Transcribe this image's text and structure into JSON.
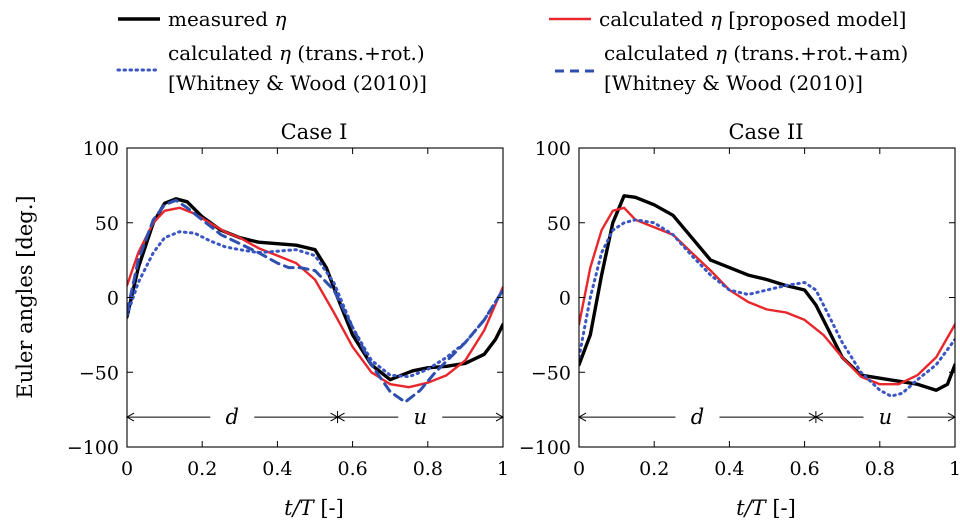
{
  "legend": [
    {
      "key": "measured",
      "prefix": "measured ",
      "sym": "η",
      "suffix": "",
      "line2": "",
      "color": "#000000",
      "style": "solid"
    },
    {
      "key": "proposed",
      "prefix": "calculated ",
      "sym": "η",
      "suffix": " [proposed model]",
      "line2": "",
      "color": "#e8262b",
      "style": "solid"
    },
    {
      "key": "trans_rot",
      "prefix": "calculated ",
      "sym": "η",
      "suffix": " (trans.+rot.)",
      "line2": "[Whitney & Wood (2010)]",
      "color": "#3a55c4",
      "style": "dotted"
    },
    {
      "key": "trans_rot_am",
      "prefix": "calculated ",
      "sym": "η",
      "suffix": " (trans.+rot.+am)",
      "line2": "[Whitney & Wood (2010)]",
      "color": "#2f4fb0",
      "style": "dashed"
    }
  ],
  "axes": {
    "ylabel": "Euler angles [deg.]",
    "xlabel_italic": "t/T",
    "xlabel_unit": " [-]",
    "xticks": [
      "0",
      "0.2",
      "0.4",
      "0.6",
      "0.8",
      "1"
    ],
    "yticks": [
      "100",
      "50",
      "0",
      "−50",
      "−100"
    ]
  },
  "chart_data": [
    {
      "type": "line",
      "title": "Case I",
      "xlim": [
        0,
        1
      ],
      "ylim": [
        -100,
        100
      ],
      "phase_labels": {
        "d": "d",
        "u": "u",
        "boundary": 0.56,
        "arrow_y": -80
      },
      "series": [
        {
          "name": "measured η",
          "color": "#000000",
          "style": "solid",
          "x": [
            0,
            0.03,
            0.07,
            0.1,
            0.13,
            0.16,
            0.2,
            0.25,
            0.3,
            0.35,
            0.4,
            0.45,
            0.5,
            0.53,
            0.56,
            0.6,
            0.65,
            0.7,
            0.73,
            0.76,
            0.8,
            0.85,
            0.9,
            0.95,
            0.98,
            1
          ],
          "y": [
            -13,
            20,
            50,
            63,
            66,
            64,
            54,
            45,
            40,
            37,
            36,
            35,
            32,
            20,
            0,
            -25,
            -45,
            -55,
            -52,
            -49,
            -47,
            -46,
            -44,
            -38,
            -28,
            -18
          ]
        },
        {
          "name": "calculated η [proposed model]",
          "color": "#e8262b",
          "style": "solid",
          "x": [
            0,
            0.03,
            0.07,
            0.1,
            0.14,
            0.18,
            0.22,
            0.26,
            0.3,
            0.35,
            0.4,
            0.45,
            0.5,
            0.55,
            0.6,
            0.65,
            0.7,
            0.75,
            0.8,
            0.85,
            0.9,
            0.95,
            1
          ],
          "y": [
            8,
            30,
            50,
            58,
            60,
            56,
            50,
            44,
            40,
            33,
            28,
            23,
            12,
            -10,
            -33,
            -50,
            -58,
            -60,
            -57,
            -52,
            -42,
            -22,
            7
          ]
        },
        {
          "name": "calculated η (trans.+rot.) [Whitney & Wood (2010)]",
          "color": "#3a55c4",
          "style": "dotted",
          "x": [
            0,
            0.03,
            0.07,
            0.1,
            0.14,
            0.18,
            0.22,
            0.26,
            0.3,
            0.35,
            0.4,
            0.45,
            0.5,
            0.55,
            0.6,
            0.65,
            0.7,
            0.75,
            0.8,
            0.85,
            0.9,
            0.95,
            1
          ],
          "y": [
            -12,
            10,
            30,
            40,
            44,
            43,
            38,
            34,
            32,
            30,
            31,
            32,
            28,
            10,
            -20,
            -42,
            -52,
            -53,
            -48,
            -40,
            -30,
            -15,
            5
          ]
        },
        {
          "name": "calculated η (trans.+rot.+am) [Whitney & Wood (2010)]",
          "color": "#2f4fb0",
          "style": "dashed",
          "x": [
            0,
            0.03,
            0.07,
            0.1,
            0.13,
            0.16,
            0.2,
            0.25,
            0.3,
            0.35,
            0.4,
            0.43,
            0.46,
            0.5,
            0.55,
            0.6,
            0.65,
            0.7,
            0.74,
            0.78,
            0.82,
            0.86,
            0.9,
            0.95,
            1
          ],
          "y": [
            -10,
            25,
            52,
            62,
            65,
            60,
            52,
            42,
            36,
            30,
            23,
            20,
            20,
            18,
            5,
            -20,
            -45,
            -63,
            -70,
            -62,
            -50,
            -40,
            -30,
            -15,
            5
          ]
        }
      ]
    },
    {
      "type": "line",
      "title": "Case II",
      "xlim": [
        0,
        1
      ],
      "ylim": [
        -100,
        100
      ],
      "phase_labels": {
        "d": "d",
        "u": "u",
        "boundary": 0.63,
        "arrow_y": -80
      },
      "series": [
        {
          "name": "measured η",
          "color": "#000000",
          "style": "solid",
          "x": [
            0,
            0.03,
            0.06,
            0.09,
            0.12,
            0.15,
            0.2,
            0.25,
            0.3,
            0.35,
            0.4,
            0.45,
            0.5,
            0.55,
            0.6,
            0.63,
            0.66,
            0.7,
            0.75,
            0.8,
            0.85,
            0.9,
            0.95,
            0.98,
            1
          ],
          "y": [
            -45,
            -25,
            15,
            50,
            68,
            67,
            62,
            55,
            40,
            25,
            20,
            15,
            12,
            8,
            5,
            -5,
            -20,
            -40,
            -52,
            -54,
            -56,
            -58,
            -62,
            -58,
            -45
          ]
        },
        {
          "name": "calculated η [proposed model]",
          "color": "#e8262b",
          "style": "solid",
          "x": [
            0,
            0.03,
            0.06,
            0.09,
            0.12,
            0.15,
            0.2,
            0.25,
            0.3,
            0.35,
            0.4,
            0.45,
            0.5,
            0.55,
            0.6,
            0.65,
            0.7,
            0.75,
            0.8,
            0.85,
            0.9,
            0.95,
            1
          ],
          "y": [
            -18,
            20,
            45,
            58,
            60,
            52,
            47,
            42,
            30,
            18,
            5,
            -3,
            -8,
            -10,
            -15,
            -25,
            -40,
            -53,
            -58,
            -58,
            -52,
            -40,
            -18
          ]
        },
        {
          "name": "calculated η (trans.+rot.) [Whitney & Wood (2010)]",
          "color": "#3a55c4",
          "style": "dotted",
          "x": [
            0,
            0.03,
            0.06,
            0.09,
            0.12,
            0.15,
            0.2,
            0.25,
            0.3,
            0.35,
            0.4,
            0.45,
            0.5,
            0.55,
            0.6,
            0.63,
            0.66,
            0.7,
            0.75,
            0.8,
            0.83,
            0.86,
            0.9,
            0.95,
            1
          ],
          "y": [
            -40,
            0,
            30,
            45,
            50,
            52,
            50,
            42,
            28,
            15,
            5,
            2,
            5,
            8,
            10,
            5,
            -10,
            -30,
            -50,
            -62,
            -66,
            -64,
            -55,
            -45,
            -28
          ]
        }
      ]
    }
  ]
}
